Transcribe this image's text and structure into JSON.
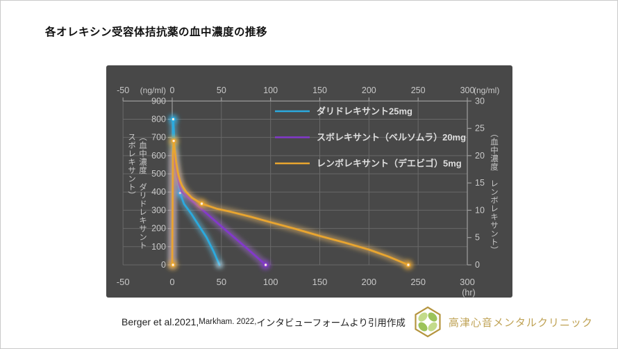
{
  "page": {
    "title": "各オレキシン受容体拮抗薬の血中濃度の推移"
  },
  "chart_data": {
    "type": "line",
    "title": "各オレキシン受容体拮抗薬の血中濃度の推移",
    "background": "#484848",
    "grid_color": "#696969",
    "axis_color": "#9e9e9e",
    "tick_text_color": "#c9c9c9",
    "legend_text_color": "#dedede",
    "legend_position": "top-center-inside",
    "x_axis": {
      "min": -50,
      "max": 300,
      "ticks": [
        -50,
        0,
        50,
        100,
        150,
        200,
        250,
        300
      ],
      "unit_top_left": "(ng/ml)",
      "unit_top_right": "(ng/ml)",
      "unit_bottom": "(hr)"
    },
    "y_left": {
      "min": 0,
      "max": 900,
      "ticks": [
        900,
        800,
        700,
        600,
        500,
        400,
        300,
        200,
        100,
        0
      ],
      "title": "（血中濃度　ダリドレキサント\nスボレキサント）"
    },
    "y_right": {
      "min": 0,
      "max": 30,
      "ticks": [
        30,
        25,
        20,
        15,
        10,
        5,
        0
      ],
      "title": "（血中濃度　レンボレキサント）"
    },
    "series": [
      {
        "name": "ダリドレキサント25mg",
        "color": "#2baade",
        "axis": "left",
        "points": [
          [
            0,
            0
          ],
          [
            0.8,
            780
          ],
          [
            1,
            800
          ],
          [
            1.6,
            740
          ],
          [
            2.5,
            650
          ],
          [
            4,
            530
          ],
          [
            6,
            450
          ],
          [
            8,
            395
          ],
          [
            12,
            335
          ],
          [
            20,
            276
          ],
          [
            28,
            208
          ],
          [
            35,
            150
          ],
          [
            42,
            75
          ],
          [
            48,
            0
          ]
        ],
        "markers": [
          [
            1,
            800
          ],
          [
            8,
            395
          ]
        ],
        "end_glow": [
          48,
          0
        ]
      },
      {
        "name": "スボレキサント（ベルソムラ）20mg",
        "color": "#8338cc",
        "axis": "left",
        "points": [
          [
            0,
            0
          ],
          [
            1,
            590
          ],
          [
            1.4,
            620
          ],
          [
            2,
            595
          ],
          [
            3,
            545
          ],
          [
            5,
            488
          ],
          [
            7,
            443
          ],
          [
            10,
            400
          ],
          [
            20,
            352
          ],
          [
            30,
            306
          ],
          [
            45,
            235
          ],
          [
            60,
            165
          ],
          [
            75,
            95
          ],
          [
            95,
            0
          ]
        ],
        "markers": [
          [
            95,
            0
          ]
        ]
      },
      {
        "name": "レンボレキサント（デエビゴ）5mg",
        "color": "#e9a52f",
        "axis": "right",
        "points": [
          [
            0,
            0
          ],
          [
            0.8,
            20.5
          ],
          [
            1.5,
            22.7
          ],
          [
            2.5,
            21.2
          ],
          [
            4,
            18.8
          ],
          [
            6,
            16.7
          ],
          [
            8,
            15.4
          ],
          [
            10,
            14.5
          ],
          [
            14,
            13.4
          ],
          [
            20,
            12.3
          ],
          [
            30,
            11.2
          ],
          [
            45,
            10.3
          ],
          [
            60,
            9.7
          ],
          [
            80,
            8.8
          ],
          [
            100,
            7.8
          ],
          [
            125,
            6.6
          ],
          [
            150,
            5.3
          ],
          [
            175,
            4.1
          ],
          [
            200,
            2.8
          ],
          [
            220,
            1.5
          ],
          [
            240,
            0
          ]
        ],
        "markers": [
          [
            0.8,
            0
          ],
          [
            1.5,
            22.7
          ],
          [
            30,
            11.2
          ],
          [
            240,
            0
          ]
        ]
      }
    ]
  },
  "caption": {
    "part1": "Berger et al.2021,",
    "part2": " Markham. 2022,",
    "part3": " インタビューフォームより引用作成"
  },
  "logo": {
    "clinic_name": "高津心音メンタルクリニック",
    "frame_color": "#b5953f",
    "leaf_color_a": "#c3db8b",
    "leaf_color_b": "#9cc35a",
    "leaf_stroke": "#7daa3c",
    "text_color": "#bfa254"
  }
}
